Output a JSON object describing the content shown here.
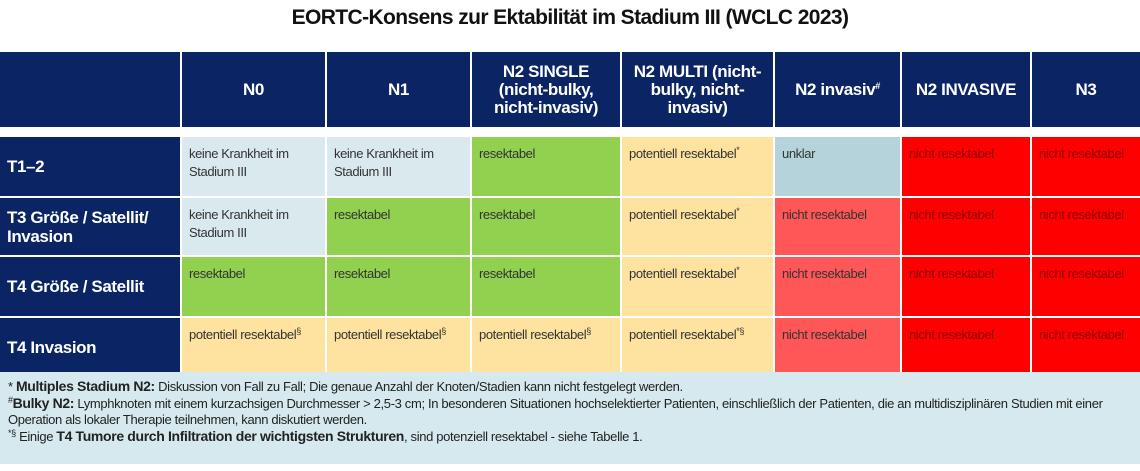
{
  "title": "EORTC-Konsens zur Ektabilität im Stadium III (WCLC 2023)",
  "table": {
    "header": [
      {
        "text": ""
      },
      {
        "text": "N0"
      },
      {
        "text": "N1"
      },
      {
        "text": "N2 SINGLE (nicht-bulky, nicht-invasiv)"
      },
      {
        "text": "N2 MULTI (nicht-bulky, nicht-invasiv)"
      },
      {
        "text": "N2 invasiv",
        "sup": "#"
      },
      {
        "text": "N2 INVASIVE"
      },
      {
        "text": "N3"
      }
    ],
    "rows": [
      [
        {
          "text": "T1–2"
        },
        {
          "text": "keine Krankheit im Stadium III"
        },
        {
          "text": "keine Krankheit im Stadium III"
        },
        {
          "text": "resektabel"
        },
        {
          "text": "potentiell resektabel",
          "sup": "*"
        },
        {
          "text": "unklar"
        },
        {
          "text": "nicht resektabel"
        },
        {
          "text": "nicht resektabel"
        }
      ],
      [
        {
          "text": "T3 Größe / Satellit/ Invasion"
        },
        {
          "text": "keine Krankheit im Stadium III"
        },
        {
          "text": "resektabel"
        },
        {
          "text": "resektabel"
        },
        {
          "text": "potentiell resektabel",
          "sup": "*"
        },
        {
          "text": "nicht resektabel"
        },
        {
          "text": "nicht resektabel"
        },
        {
          "text": "nicht resektabel"
        }
      ],
      [
        {
          "text": "T4 Größe / Satellit"
        },
        {
          "text": "resektabel"
        },
        {
          "text": "resektabel"
        },
        {
          "text": "resektabel"
        },
        {
          "text": "potentiell resektabel",
          "sup": "*"
        },
        {
          "text": "nicht resektabel"
        },
        {
          "text": "nicht resektabel"
        },
        {
          "text": "nicht resektabel"
        }
      ],
      [
        {
          "text": "T4 Invasion"
        },
        {
          "text": "potentiell resektabel",
          "sup": "§"
        },
        {
          "text": "potentiell resektabel",
          "sup": "§"
        },
        {
          "text": "potentiell resektabel",
          "sup": "§"
        },
        {
          "text": "potentiell resektabel",
          "sup": "*§"
        },
        {
          "text": "nicht resektabel"
        },
        {
          "text": "nicht resektabel"
        },
        {
          "text": "nicht resektabel"
        }
      ]
    ]
  },
  "footnotes": [
    {
      "marker": "*",
      "parts": [
        {
          "text": "Multiples Stadium N2:",
          "bold": true
        },
        {
          "text": " Diskussion von Fall zu Fall; Die genaue Anzahl der Knoten/Stadien kann nicht festgelegt werden."
        }
      ]
    },
    {
      "marker": "#",
      "parts": [
        {
          "text": "Bulky N2:",
          "bold": true
        },
        {
          "text": " Lymphknoten mit einem kurzachsigen Durchmesser > 2,5-3 cm; In besonderen Situationen hochselektierter Patienten, einschließlich der Patienten, die an multidisziplinären Studien mit einer Operation als lokaler Therapie teilnehmen, kann diskutiert werden."
        }
      ]
    },
    {
      "marker": "*§",
      "parts": [
        {
          "text": " Einige "
        },
        {
          "text": "T4 Tumore durch Infiltration der wichtigsten Strukturen",
          "bold": true
        },
        {
          "text": ", sind potenziell resektabel - siehe Tabelle 1."
        }
      ]
    }
  ]
}
